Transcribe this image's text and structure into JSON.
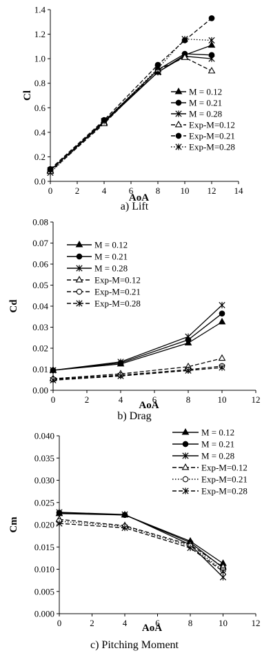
{
  "chart_data": [
    {
      "type": "line",
      "caption": "a) Lift",
      "xlabel": "AoA",
      "ylabel": "Cl",
      "xlim": [
        0,
        14
      ],
      "ylim": [
        0,
        1.4
      ],
      "xticks": [
        "0",
        "2",
        "4",
        "6",
        "8",
        "10",
        "12",
        "14"
      ],
      "yticks": [
        "0.0",
        "0.2",
        "0.4",
        "0.6",
        "0.8",
        "1.0",
        "1.2",
        "1.4"
      ],
      "legend_position": "right",
      "grid": false,
      "series": [
        {
          "name": "M = 0.12",
          "x": [
            0,
            4,
            8,
            10,
            12
          ],
          "y": [
            0.09,
            0.48,
            0.89,
            1.03,
            1.11
          ],
          "marker": "triangle",
          "dash": "solid"
        },
        {
          "name": "M = 0.21",
          "x": [
            0,
            4,
            8,
            10,
            12
          ],
          "y": [
            0.09,
            0.49,
            0.91,
            1.04,
            1.03
          ],
          "marker": "circle",
          "dash": "solid"
        },
        {
          "name": "M = 0.28",
          "x": [
            0,
            4,
            8,
            10,
            12
          ],
          "y": [
            0.09,
            0.49,
            0.89,
            1.02,
            1.0
          ],
          "marker": "star",
          "dash": "solid"
        },
        {
          "name": "Exp-M=0.12",
          "x": [
            0,
            4,
            8,
            10,
            12
          ],
          "y": [
            0.08,
            0.47,
            0.91,
            1.01,
            0.9
          ],
          "marker": "triangle-open",
          "dash": "dash"
        },
        {
          "name": "Exp-M=0.21",
          "x": [
            0,
            4,
            8,
            10,
            12
          ],
          "y": [
            0.1,
            0.5,
            0.95,
            1.15,
            1.33
          ],
          "marker": "circle",
          "dash": "dash"
        },
        {
          "name": "Exp-M=0.28",
          "x": [
            0,
            4,
            8,
            10,
            12
          ],
          "y": [
            0.07,
            0.49,
            0.92,
            1.16,
            1.15
          ],
          "marker": "star",
          "dash": "dot"
        }
      ]
    },
    {
      "type": "line",
      "caption": "b) Drag",
      "xlabel": "AoA",
      "ylabel": "Cd",
      "xlim": [
        0,
        12
      ],
      "ylim": [
        0,
        0.08
      ],
      "xticks": [
        "0",
        "2",
        "4",
        "6",
        "8",
        "10",
        "12"
      ],
      "yticks": [
        "0.00",
        "0.01",
        "0.02",
        "0.03",
        "0.04",
        "0.05",
        "0.06",
        "0.07",
        "0.08"
      ],
      "legend_position": "top-left",
      "grid": false,
      "series": [
        {
          "name": "M = 0.12",
          "x": [
            0,
            4,
            8,
            10
          ],
          "y": [
            0.0095,
            0.0125,
            0.0225,
            0.0325
          ],
          "marker": "triangle",
          "dash": "solid"
        },
        {
          "name": "M = 0.21",
          "x": [
            0,
            4,
            8,
            10
          ],
          "y": [
            0.0095,
            0.013,
            0.024,
            0.0365
          ],
          "marker": "circle",
          "dash": "solid"
        },
        {
          "name": "M = 0.28",
          "x": [
            0,
            4,
            8,
            10
          ],
          "y": [
            0.0095,
            0.0135,
            0.0255,
            0.0405
          ],
          "marker": "star",
          "dash": "solid"
        },
        {
          "name": "Exp-M=0.12",
          "x": [
            0,
            4,
            8,
            10
          ],
          "y": [
            0.0055,
            0.0078,
            0.0112,
            0.0152
          ],
          "marker": "triangle-open",
          "dash": "dash"
        },
        {
          "name": "Exp-M=0.21",
          "x": [
            0,
            4,
            8,
            10
          ],
          "y": [
            0.0052,
            0.0072,
            0.0098,
            0.0115
          ],
          "marker": "circle-open",
          "dash": "dash"
        },
        {
          "name": "Exp-M=0.28",
          "x": [
            0,
            4,
            8,
            10
          ],
          "y": [
            0.0048,
            0.0068,
            0.0094,
            0.0108
          ],
          "marker": "star",
          "dash": "dash"
        }
      ]
    },
    {
      "type": "line",
      "caption": "c) Pitching Moment",
      "xlabel": "AoA",
      "ylabel": "Cm",
      "xlim": [
        0,
        12
      ],
      "ylim": [
        0,
        0.04
      ],
      "xticks": [
        "0",
        "2",
        "4",
        "6",
        "8",
        "10",
        "12"
      ],
      "yticks": [
        "0.000",
        "0.005",
        "0.010",
        "0.015",
        "0.020",
        "0.025",
        "0.030",
        "0.035",
        "0.040"
      ],
      "legend_position": "top-right",
      "grid": false,
      "series": [
        {
          "name": "M = 0.12",
          "x": [
            0,
            4,
            8,
            10
          ],
          "y": [
            0.0225,
            0.0222,
            0.0163,
            0.0113
          ],
          "marker": "triangle",
          "dash": "solid"
        },
        {
          "name": "M = 0.21",
          "x": [
            0,
            4,
            8,
            10
          ],
          "y": [
            0.0227,
            0.0222,
            0.016,
            0.0103
          ],
          "marker": "circle",
          "dash": "solid"
        },
        {
          "name": "M = 0.28",
          "x": [
            0,
            4,
            8,
            10
          ],
          "y": [
            0.0228,
            0.0223,
            0.0155,
            0.0082
          ],
          "marker": "star",
          "dash": "solid"
        },
        {
          "name": "Exp-M=0.12",
          "x": [
            0,
            4,
            8,
            10
          ],
          "y": [
            0.0212,
            0.0198,
            0.0155,
            0.0105
          ],
          "marker": "triangle-open",
          "dash": "dash"
        },
        {
          "name": "Exp-M=0.21",
          "x": [
            0,
            4,
            8,
            10
          ],
          "y": [
            0.0208,
            0.0196,
            0.0152,
            0.0098
          ],
          "marker": "circle-open",
          "dash": "dot"
        },
        {
          "name": "Exp-M=0.28",
          "x": [
            0,
            4,
            8,
            10
          ],
          "y": [
            0.0203,
            0.0193,
            0.0148,
            0.0095
          ],
          "marker": "star",
          "dash": "dash"
        }
      ]
    }
  ]
}
